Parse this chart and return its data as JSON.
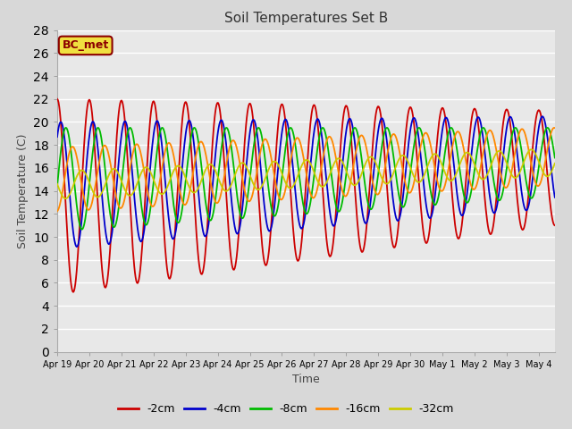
{
  "title": "Soil Temperatures Set B",
  "xlabel": "Time",
  "ylabel": "Soil Temperature (C)",
  "annotation": "BC_met",
  "ylim": [
    0,
    28
  ],
  "yticks": [
    0,
    2,
    4,
    6,
    8,
    10,
    12,
    14,
    16,
    18,
    20,
    22,
    24,
    26,
    28
  ],
  "series_colors": [
    "#cc0000",
    "#0000cc",
    "#00bb00",
    "#ff8800",
    "#cccc00"
  ],
  "series_labels": [
    "-2cm",
    "-4cm",
    "-8cm",
    "-16cm",
    "-32cm"
  ],
  "x_tick_labels": [
    "Apr 19",
    "Apr 20",
    "Apr 21",
    "Apr 22",
    "Apr 23",
    "Apr 24",
    "Apr 25",
    "Apr 26",
    "Apr 27",
    "Apr 28",
    "Apr 29",
    "Apr 30",
    "May 1",
    "May 2",
    "May 3",
    "May 4"
  ],
  "background_color": "#d8d8d8",
  "plot_bg_color": "#e8e8e8",
  "grid_color": "#ffffff",
  "n_days": 15.5,
  "points_per_day": 48
}
